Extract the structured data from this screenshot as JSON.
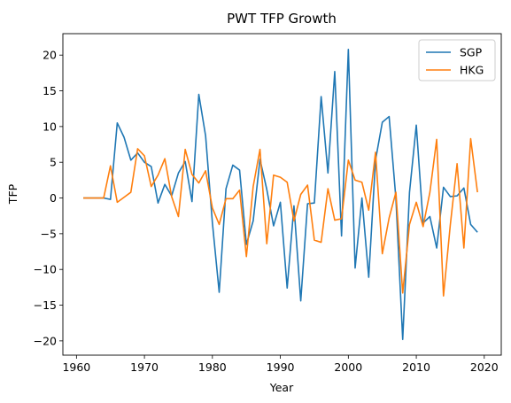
{
  "chart_data": {
    "type": "line",
    "title": "PWT TFP Growth",
    "xlabel": "Year",
    "ylabel": "TFP",
    "xlim": [
      1958,
      2022.5
    ],
    "ylim": [
      -22,
      23
    ],
    "xticks": [
      1960,
      1970,
      1980,
      1990,
      2000,
      2010,
      2020
    ],
    "yticks": [
      -20,
      -15,
      -10,
      -5,
      0,
      5,
      10,
      15,
      20
    ],
    "grid": false,
    "legend_position": "top-right",
    "x": [
      1961,
      1962,
      1963,
      1964,
      1965,
      1966,
      1967,
      1968,
      1969,
      1970,
      1971,
      1972,
      1973,
      1974,
      1975,
      1976,
      1977,
      1978,
      1979,
      1980,
      1981,
      1982,
      1983,
      1984,
      1985,
      1986,
      1987,
      1988,
      1989,
      1990,
      1991,
      1992,
      1993,
      1994,
      1995,
      1996,
      1997,
      1998,
      1999,
      2000,
      2001,
      2002,
      2003,
      2004,
      2005,
      2006,
      2007,
      2008,
      2009,
      2010,
      2011,
      2012,
      2013,
      2014,
      2015,
      2016,
      2017,
      2018,
      2019
    ],
    "series": [
      {
        "name": "SGP",
        "color": "#1f77b4",
        "values": [
          0,
          0,
          0,
          0,
          -0.2,
          10.5,
          8.5,
          5.3,
          6.3,
          5.0,
          4.4,
          -0.7,
          1.9,
          0.3,
          3.5,
          5.1,
          -0.5,
          14.5,
          8.7,
          -3.5,
          -13.2,
          1.3,
          4.6,
          3.9,
          -6.5,
          -3.2,
          5.4,
          1.2,
          -3.9,
          -0.6,
          -12.6,
          -1.1,
          -14.4,
          -0.8,
          -0.7,
          14.2,
          3.5,
          17.7,
          -5.3,
          20.8,
          -9.8,
          0,
          -11.1,
          5.3,
          10.6,
          11.4,
          -0.1,
          -19.8,
          0.8,
          10.2,
          -3.5,
          -2.6,
          -7.0,
          1.5,
          0.2,
          0.3,
          1.4,
          -3.7,
          -4.8
        ]
      },
      {
        "name": "HKG",
        "color": "#ff7f0e",
        "values": [
          0,
          0,
          0,
          0,
          4.5,
          -0.6,
          0.1,
          0.8,
          6.9,
          5.9,
          1.6,
          3.2,
          5.5,
          0.2,
          -2.6,
          6.8,
          3.3,
          2.1,
          3.8,
          -1.4,
          -3.7,
          -0.1,
          -0.1,
          1.1,
          -8.2,
          1.6,
          6.8,
          -6.4,
          3.2,
          2.9,
          2.2,
          -3.2,
          0.5,
          1.8,
          -5.9,
          -6.2,
          1.3,
          -3.1,
          -2.9,
          5.3,
          2.5,
          2.2,
          -1.7,
          6.4,
          -7.8,
          -2.8,
          0.8,
          -13.3,
          -3.7,
          -0.6,
          -4.0,
          0.8,
          8.2,
          -13.7,
          -3.8,
          4.8,
          -7.0,
          8.3,
          0.8
        ]
      }
    ]
  }
}
